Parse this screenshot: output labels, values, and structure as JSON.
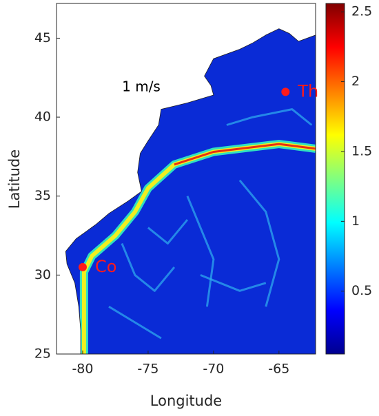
{
  "chart_data": {
    "type": "map",
    "xlabel": "Longitude",
    "ylabel": "Latitude",
    "xlim": [
      -82,
      -62.2
    ],
    "ylim": [
      25,
      47.2
    ],
    "xticks": [
      -80,
      -75,
      -70,
      -65
    ],
    "yticks": [
      25,
      30,
      35,
      40,
      45
    ],
    "clim": [
      0.05,
      2.56
    ],
    "cticks": [
      0.5,
      1,
      1.5,
      2,
      2.5
    ],
    "colormap": "jet",
    "annotation": "1 m/s",
    "points": [
      {
        "label": "Co",
        "x": -80,
        "y": 30.5,
        "color": "#ff1a1a"
      },
      {
        "label": "Th",
        "x": -64.5,
        "y": 41.6,
        "color": "#ff1a1a"
      }
    ]
  }
}
